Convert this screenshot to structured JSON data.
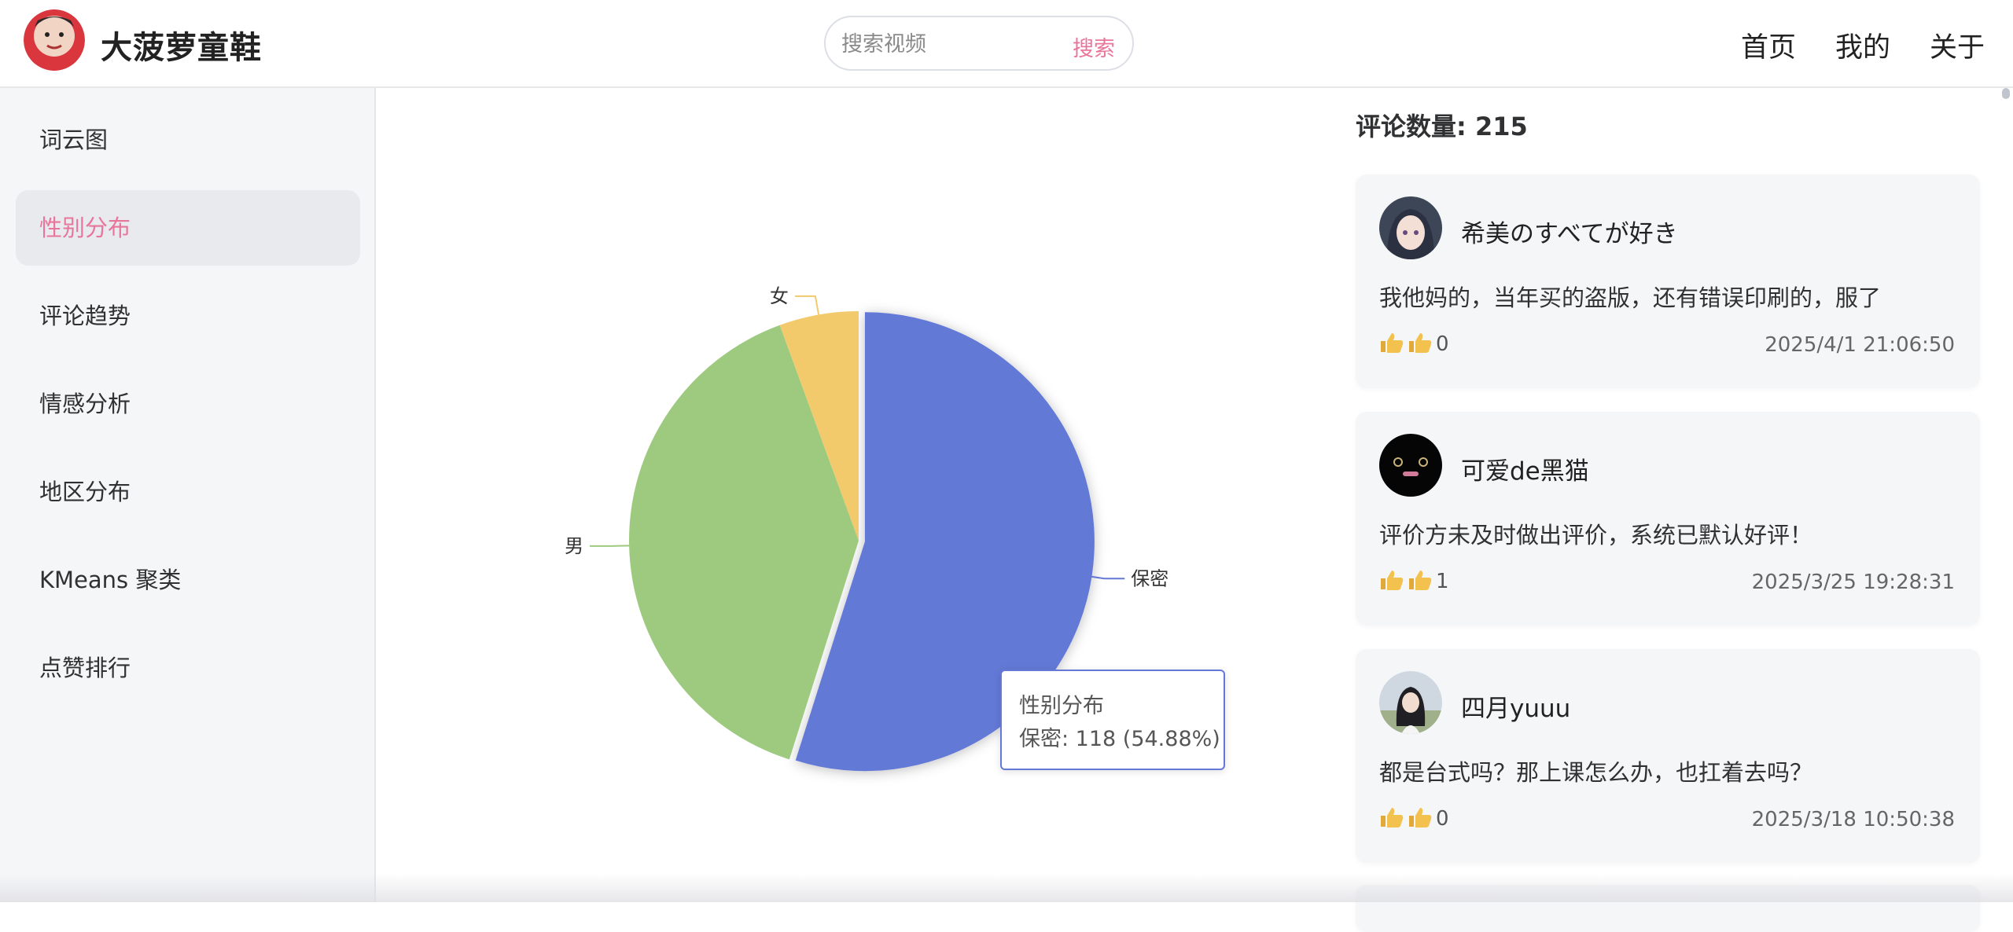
{
  "header": {
    "brand": "大菠萝童鞋",
    "search_placeholder": "搜索视频",
    "search_button": "搜索",
    "nav": [
      "首页",
      "我的",
      "关于"
    ]
  },
  "sidebar": {
    "items": [
      {
        "label": "词云图"
      },
      {
        "label": "性别分布"
      },
      {
        "label": "评论趋势"
      },
      {
        "label": "情感分析"
      },
      {
        "label": "地区分布"
      },
      {
        "label": "KMeans 聚类"
      },
      {
        "label": "点赞排行"
      }
    ],
    "active_index": 1
  },
  "chart_data": {
    "type": "pie",
    "series_name": "性别分布",
    "slices": [
      {
        "name": "保密",
        "value": 118,
        "color": "#6479d6"
      },
      {
        "name": "男",
        "value": 85,
        "color": "#9dca7f"
      },
      {
        "name": "女",
        "value": 12,
        "color": "#f2ca6b"
      }
    ],
    "tooltip": {
      "title": "性别分布",
      "text": "保密: 118 (54.88%)"
    }
  },
  "comments": {
    "count_label": "评论数量: 215",
    "items": [
      {
        "user": "希美のすべてが好き",
        "content": "我他妈的，当年买的盗版，还有错误印刷的，服了",
        "likes": "0",
        "time": "2025/4/1 21:06:50"
      },
      {
        "user": "可爱de黑猫",
        "content": "评价方未及时做出评价，系统已默认好评！",
        "likes": "1",
        "time": "2025/3/25 19:28:31"
      },
      {
        "user": "四月yuuu",
        "content": "都是台式吗？那上课怎么办，也扛着去吗？",
        "likes": "0",
        "time": "2025/3/18 10:50:38"
      }
    ]
  }
}
